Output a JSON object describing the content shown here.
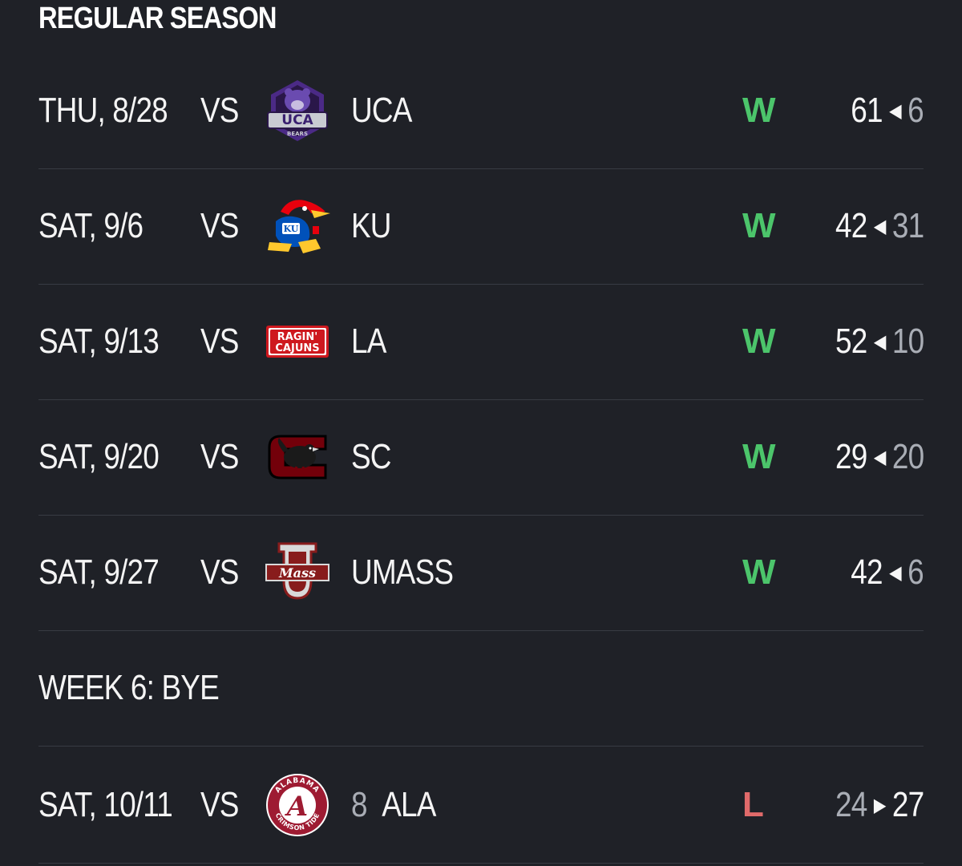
{
  "section_title": "REGULAR SEASON",
  "games": [
    {
      "date": "THU, 8/28",
      "vs": "VS",
      "logo_icon": "uca-bears-logo-icon",
      "rank": "",
      "opponent": "UCA",
      "result": "W",
      "team_score": "61",
      "opp_score": "6",
      "arrow": "◀"
    },
    {
      "date": "SAT, 9/6",
      "vs": "VS",
      "logo_icon": "kansas-jayhawk-logo-icon",
      "rank": "",
      "opponent": "KU",
      "result": "W",
      "team_score": "42",
      "opp_score": "31",
      "arrow": "◀"
    },
    {
      "date": "SAT, 9/13",
      "vs": "VS",
      "logo_icon": "ragin-cajuns-logo-icon",
      "rank": "",
      "opponent": "LA",
      "result": "W",
      "team_score": "52",
      "opp_score": "10",
      "arrow": "◀"
    },
    {
      "date": "SAT, 9/20",
      "vs": "VS",
      "logo_icon": "south-carolina-gamecock-logo-icon",
      "rank": "",
      "opponent": "SC",
      "result": "W",
      "team_score": "29",
      "opp_score": "20",
      "arrow": "◀"
    },
    {
      "date": "SAT, 9/27",
      "vs": "VS",
      "logo_icon": "umass-logo-icon",
      "rank": "",
      "opponent": "UMASS",
      "result": "W",
      "team_score": "42",
      "opp_score": "6",
      "arrow": "◀"
    }
  ],
  "bye": {
    "label": "WEEK 6: BYE"
  },
  "last_game": {
    "date": "SAT, 10/11",
    "vs": "VS",
    "logo_icon": "alabama-crimson-tide-logo-icon",
    "rank": "8",
    "opponent": "ALA",
    "result": "L",
    "team_score": "24",
    "opp_score": "27",
    "arrow": "▶"
  },
  "logo_text": {
    "uca": "UCA",
    "uca_sub": "BEARS",
    "ragin_1": "RAGIN'",
    "ragin_2": "CAJUNS",
    "ku": "KU",
    "umass": "Mass",
    "alabama_top": "ALABAMA",
    "alabama_bottom": "CRIMSON TIDE",
    "alabama_letter": "A"
  },
  "colors": {
    "background": "#1f2127",
    "win": "#4cc56b",
    "loss": "#e06a6a",
    "muted": "#a9adb5",
    "divider": "#383b43"
  }
}
